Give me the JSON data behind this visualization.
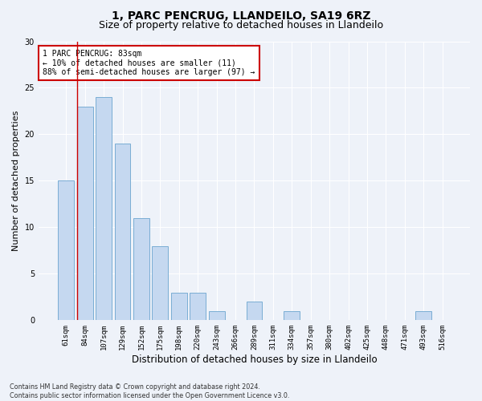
{
  "title": "1, PARC PENCRUG, LLANDEILO, SA19 6RZ",
  "subtitle": "Size of property relative to detached houses in Llandeilo",
  "xlabel": "Distribution of detached houses by size in Llandeilo",
  "ylabel": "Number of detached properties",
  "categories": [
    "61sqm",
    "84sqm",
    "107sqm",
    "129sqm",
    "152sqm",
    "175sqm",
    "198sqm",
    "220sqm",
    "243sqm",
    "266sqm",
    "289sqm",
    "311sqm",
    "334sqm",
    "357sqm",
    "380sqm",
    "402sqm",
    "425sqm",
    "448sqm",
    "471sqm",
    "493sqm",
    "516sqm"
  ],
  "values": [
    15,
    23,
    24,
    19,
    11,
    8,
    3,
    3,
    1,
    0,
    2,
    0,
    1,
    0,
    0,
    0,
    0,
    0,
    0,
    1,
    0
  ],
  "bar_color": "#c5d8f0",
  "bar_edge_color": "#7aadd4",
  "ylim": [
    0,
    30
  ],
  "yticks": [
    0,
    5,
    10,
    15,
    20,
    25,
    30
  ],
  "annotation_text": "1 PARC PENCRUG: 83sqm\n← 10% of detached houses are smaller (11)\n88% of semi-detached houses are larger (97) →",
  "annotation_box_color": "#ffffff",
  "annotation_box_edge_color": "#cc0000",
  "footer_line1": "Contains HM Land Registry data © Crown copyright and database right 2024.",
  "footer_line2": "Contains public sector information licensed under the Open Government Licence v3.0.",
  "background_color": "#eef2f9",
  "grid_color": "#ffffff",
  "title_fontsize": 10,
  "subtitle_fontsize": 9,
  "tick_fontsize": 6.5,
  "ylabel_fontsize": 8,
  "xlabel_fontsize": 8.5,
  "annotation_fontsize": 7,
  "footer_fontsize": 5.8
}
